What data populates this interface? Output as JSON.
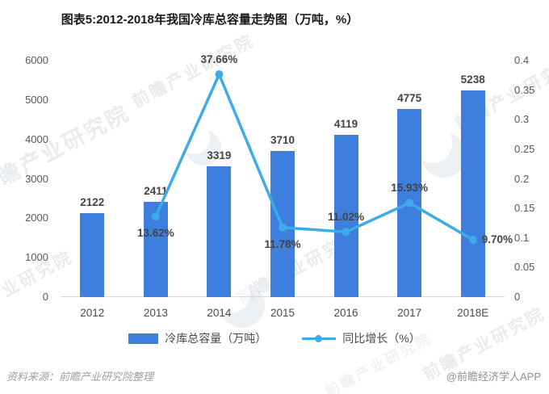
{
  "title": "图表5:2012-2018年我国冷库总容量走势图（万吨，%）",
  "source_note": "资料来源：前瞻产业研究院整理",
  "credit": "@前瞻经济学人APP",
  "watermark": {
    "text": "前瞻产业研究院"
  },
  "colors": {
    "bar": "#3E7EDD",
    "line": "#3CABE8",
    "axis_text": "#595959",
    "label_text": "#444444",
    "title_text": "#1a1a1a"
  },
  "legend": [
    {
      "label": "冷库总容量（万吨）",
      "type": "bar"
    },
    {
      "label": "同比增长（%）",
      "type": "line"
    }
  ],
  "chart_data": {
    "type": "bar+line combo",
    "title": "图表5:2012-2018年我国冷库总容量走势图（万吨，%）",
    "categories": [
      "2012",
      "2013",
      "2014",
      "2015",
      "2016",
      "2017",
      "2018E"
    ],
    "series": [
      {
        "name": "冷库总容量（万吨）",
        "type": "bar",
        "axis": "left",
        "values": [
          2122,
          2411,
          3319,
          3710,
          4119,
          4775,
          5238
        ],
        "labels": [
          "2122",
          "2411",
          "3319",
          "3710",
          "4119",
          "4775",
          "5238"
        ]
      },
      {
        "name": "同比增长（%）",
        "type": "line",
        "axis": "right",
        "values": [
          null,
          0.1362,
          0.3766,
          0.1178,
          0.1102,
          0.1593,
          0.097
        ],
        "labels": [
          null,
          "13.62%",
          "37.66%",
          "11.78%",
          "11.02%",
          "15.93%",
          "9.70%"
        ],
        "label_pos": [
          null,
          "below",
          "above",
          "below",
          "above",
          "above",
          "right"
        ]
      }
    ],
    "left_axis": {
      "min": 0,
      "max": 6000,
      "step": 1000,
      "ticks": [
        "0",
        "1000",
        "2000",
        "3000",
        "4000",
        "5000",
        "6000"
      ]
    },
    "right_axis": {
      "min": 0,
      "max": 0.4,
      "step": 0.05,
      "ticks": [
        "0",
        "0.05",
        "0.1",
        "0.15",
        "0.2",
        "0.25",
        "0.3",
        "0.35",
        "0.4"
      ]
    },
    "grid": false,
    "legend_position": "bottom"
  }
}
